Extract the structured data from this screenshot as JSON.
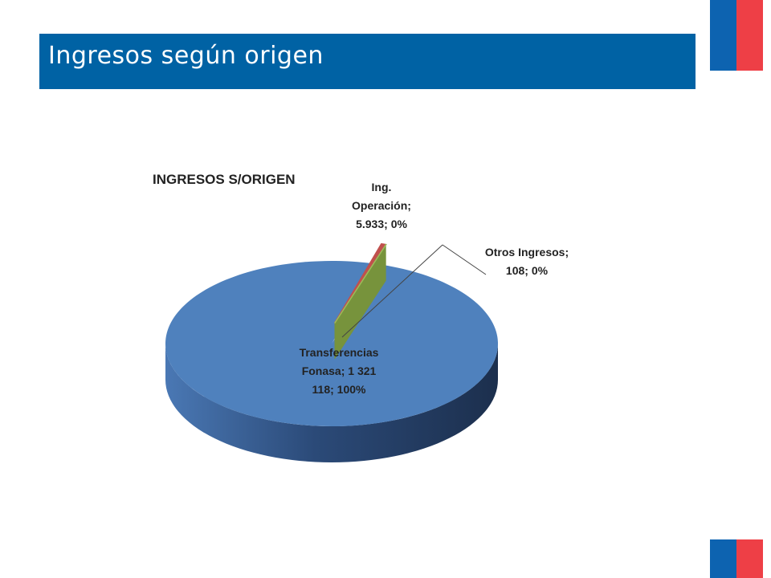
{
  "header": {
    "title": "Ingresos según origen"
  },
  "chart_data": {
    "type": "pie",
    "title": "INGRESOS S/ORIGEN",
    "categories": [
      "Transferencias Fonasa",
      "Ing. Operación",
      "Otros Ingresos"
    ],
    "values": [
      1321118,
      5933,
      108
    ],
    "value_labels": [
      "1 321 118",
      "5.933",
      "108"
    ],
    "percent_labels": [
      "100%",
      "0%",
      "0%"
    ],
    "label_separator": "; ",
    "colors": [
      "#4f81bd",
      "#c0504d",
      "#9bbb59"
    ]
  }
}
